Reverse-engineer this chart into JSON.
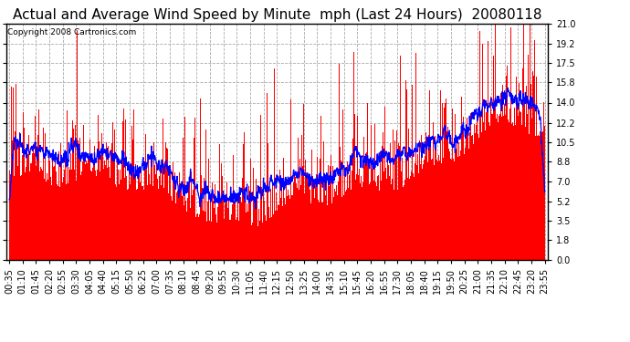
{
  "title": "Actual and Average Wind Speed by Minute  mph (Last 24 Hours)  20080118",
  "copyright": "Copyright 2008 Cartronics.com",
  "yticks": [
    0.0,
    1.8,
    3.5,
    5.2,
    7.0,
    8.8,
    10.5,
    12.2,
    14.0,
    15.8,
    17.5,
    19.2,
    21.0
  ],
  "ylim": [
    0.0,
    21.0
  ],
  "xtick_labels": [
    "00:35",
    "01:10",
    "01:45",
    "02:20",
    "02:55",
    "03:30",
    "04:05",
    "04:40",
    "05:15",
    "05:50",
    "06:25",
    "07:00",
    "07:35",
    "08:10",
    "08:45",
    "09:20",
    "09:55",
    "10:30",
    "11:05",
    "11:40",
    "12:15",
    "12:50",
    "13:25",
    "14:00",
    "14:35",
    "15:10",
    "15:45",
    "16:20",
    "16:55",
    "17:30",
    "18:05",
    "18:40",
    "19:15",
    "19:50",
    "20:25",
    "21:00",
    "21:35",
    "22:10",
    "22:45",
    "23:20",
    "23:55"
  ],
  "bar_color": "#FF0000",
  "line_color": "#0000FF",
  "background_color": "#FFFFFF",
  "grid_color": "#AAAAAA",
  "title_fontsize": 11,
  "copyright_fontsize": 6.5,
  "tick_fontsize": 7,
  "seed": 12345,
  "n_minutes": 1440
}
